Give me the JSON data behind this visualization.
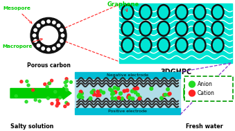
{
  "bg_color": "#ffffff",
  "porous_carbon_label": "Porous carbon",
  "mesopore_label": "Mesopore",
  "macropore_label": "Macropore",
  "graphene_label": "Graphene",
  "label_3dghpc": "3DGHPC",
  "negative_electrode_label": "Negative electrode",
  "positive_electrode_label": "Positive electrode",
  "salty_solution_label": "Salty solution",
  "fresh_water_label": "Fresh water",
  "anion_label": "Anion",
  "cation_label": "Cation",
  "anion_color": "#22dd22",
  "cation_color": "#ff2222",
  "arrow_color": "#00cc00",
  "red_dashed_color": "#ff2222",
  "purple_dashed_color": "#8833cc",
  "electrode_cyan_color": "#00bcd4",
  "graphene_wave_color": "#00e5d4",
  "carbon_ring_color": "#111111",
  "label_color_green": "#00cc00",
  "label_color_black": "#000000",
  "electrolyte_color": "#b0dde8",
  "electrode_dark": "#333333",
  "legend_border_color": "#009900"
}
